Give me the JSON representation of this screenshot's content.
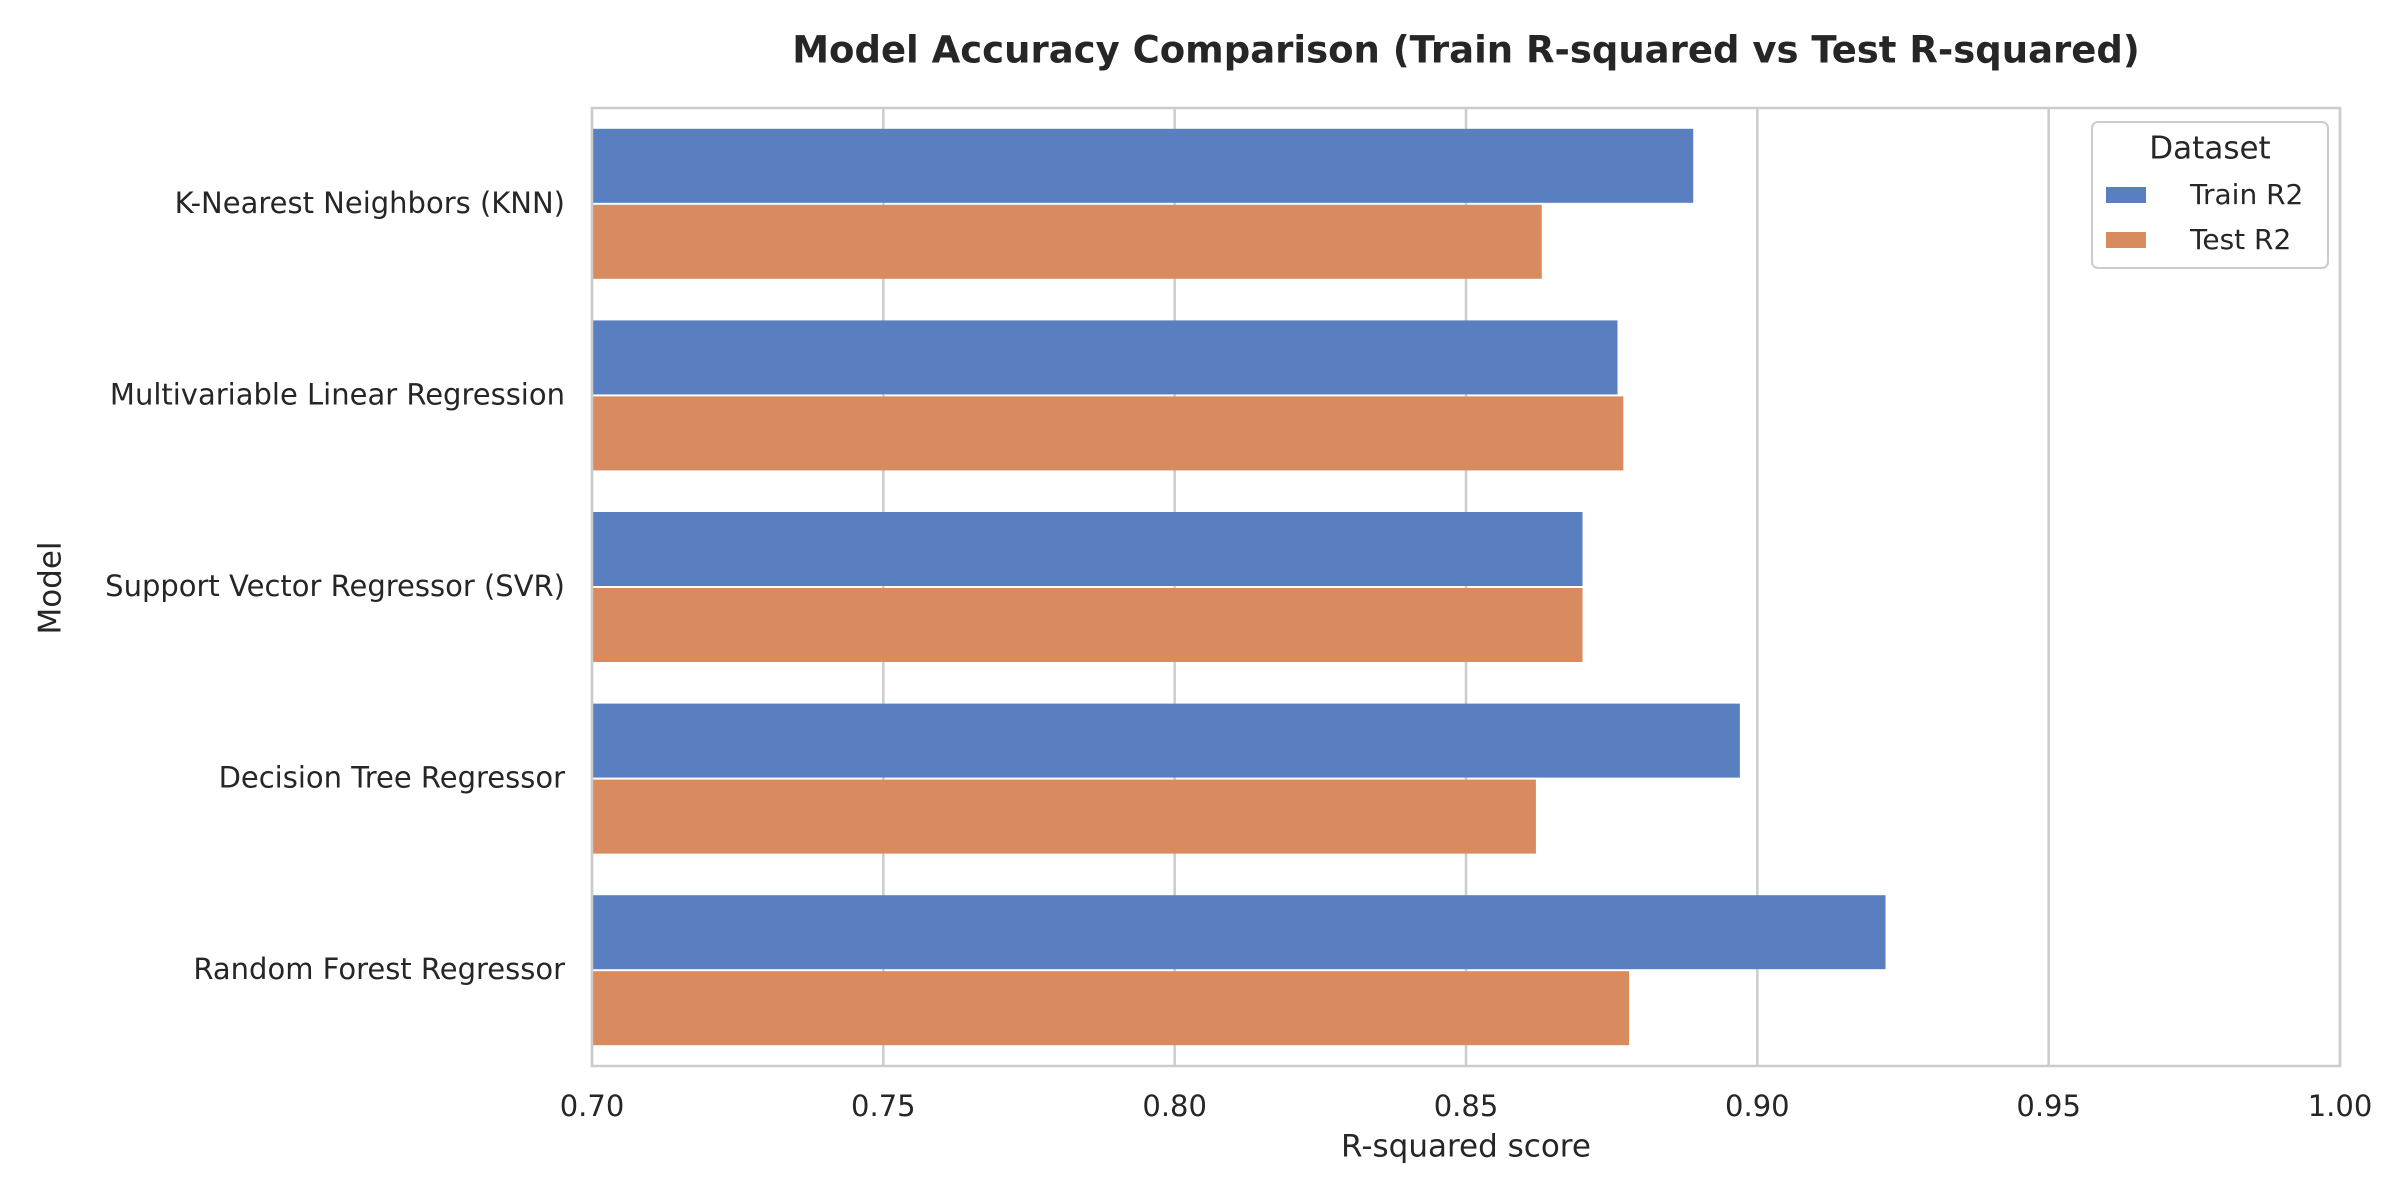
{
  "chart_data": {
    "type": "bar",
    "orientation": "horizontal",
    "title": "Model Accuracy Comparison (Train R-squared vs Test R-squared)",
    "xlabel": "R-squared score",
    "ylabel": "Model",
    "xlim": [
      0.7,
      1.0
    ],
    "xticks": [
      "0.70",
      "0.75",
      "0.80",
      "0.85",
      "0.90",
      "0.95",
      "1.00"
    ],
    "categories": [
      "K-Nearest Neighbors (KNN)",
      "Multivariable Linear Regression",
      "Support Vector Regressor (SVR)",
      "Decision Tree Regressor",
      "Random Forest Regressor"
    ],
    "series": [
      {
        "name": "Train R2",
        "color": "#5a7fc0",
        "values": [
          0.889,
          0.876,
          0.87,
          0.897,
          0.922
        ]
      },
      {
        "name": "Test R2",
        "color": "#d78b5e",
        "values": [
          0.863,
          0.877,
          0.87,
          0.862,
          0.878
        ]
      }
    ],
    "legend": {
      "title": "Dataset",
      "position": "top-right"
    },
    "grid": true
  }
}
